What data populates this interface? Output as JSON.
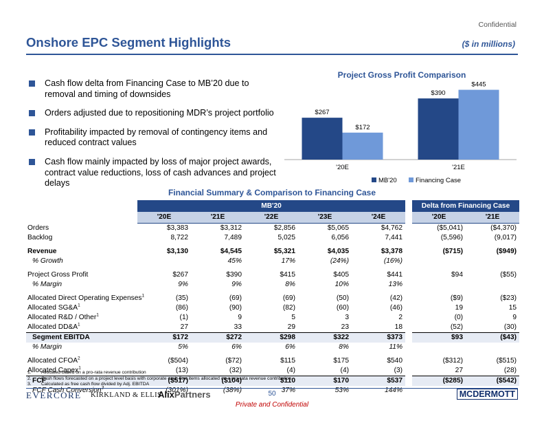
{
  "header": {
    "confidential": "Confidential",
    "title": "Onshore EPC Segment Highlights",
    "units": "($ in millions)"
  },
  "bullets": [
    "Cash flow delta from Financing Case to MB’20 due to removal and timing of downsides",
    "Orders adjusted due to repositioning MDR’s project portfolio",
    "Profitability impacted by removal of contingency items and reduced contract values",
    "Cash flow mainly impacted by loss of major project awards, contract value reductions, loss of cash advances and project delays"
  ],
  "chart_data": {
    "type": "bar",
    "title": "Project Gross Profit Comparison",
    "categories": [
      "'20E",
      "'21E"
    ],
    "series": [
      {
        "name": "MB'20",
        "values": [
          267,
          390
        ],
        "labels": [
          "$267",
          "$390"
        ],
        "color": "#244887"
      },
      {
        "name": "Financing Case",
        "values": [
          172,
          445
        ],
        "labels": [
          "$172",
          "$445"
        ],
        "color": "#6f99d9"
      }
    ],
    "ylim": [
      0,
      500
    ],
    "legend": "bottom",
    "xlabel": "",
    "ylabel": ""
  },
  "table": {
    "title": "Financial Summary & Comparison to Financing Case",
    "group_mb": "MB'20",
    "group_delta": "Delta from Financing Case",
    "years_mb": [
      "'20E",
      "'21E",
      "'22E",
      "'23E",
      "'24E"
    ],
    "years_delta": [
      "'20E",
      "'21E"
    ],
    "rows": [
      {
        "label": "Orders",
        "sup": "",
        "mb": [
          "$3,383",
          "$3,312",
          "$2,856",
          "$5,065",
          "$4,762"
        ],
        "delta": [
          "($5,041)",
          "($4,370)"
        ],
        "style": ""
      },
      {
        "label": "Backlog",
        "sup": "",
        "mb": [
          "8,722",
          "7,489",
          "5,025",
          "6,056",
          "7,441"
        ],
        "delta": [
          "(5,596)",
          "(9,017)"
        ],
        "style": ""
      },
      {
        "label": "Revenue",
        "sup": "",
        "mb": [
          "$3,130",
          "$4,545",
          "$5,321",
          "$4,035",
          "$3,378"
        ],
        "delta": [
          "($715)",
          "($949)"
        ],
        "style": "bold gap-before"
      },
      {
        "label": "% Growth",
        "sup": "",
        "mb": [
          "",
          "45%",
          "17%",
          "(24%)",
          "(16%)"
        ],
        "delta": [
          "",
          ""
        ],
        "style": "italic indent"
      },
      {
        "label": "Project Gross Profit",
        "sup": "",
        "mb": [
          "$267",
          "$390",
          "$415",
          "$405",
          "$441"
        ],
        "delta": [
          "$94",
          "($55)"
        ],
        "style": "gap-before"
      },
      {
        "label": "% Margin",
        "sup": "",
        "mb": [
          "9%",
          "9%",
          "8%",
          "10%",
          "13%"
        ],
        "delta": [
          "",
          ""
        ],
        "style": "italic indent"
      },
      {
        "label": "Allocated Direct Operating Expenses",
        "sup": "1",
        "mb": [
          "(35)",
          "(69)",
          "(69)",
          "(50)",
          "(42)"
        ],
        "delta": [
          "($9)",
          "($23)"
        ],
        "style": "gap-before"
      },
      {
        "label": "Allocated SG&A",
        "sup": "1",
        "mb": [
          "(86)",
          "(90)",
          "(82)",
          "(60)",
          "(46)"
        ],
        "delta": [
          "19",
          "15"
        ],
        "style": ""
      },
      {
        "label": "Allocated R&D / Other",
        "sup": "1",
        "mb": [
          "(1)",
          "9",
          "5",
          "3",
          "2"
        ],
        "delta": [
          "(0)",
          "9"
        ],
        "style": ""
      },
      {
        "label": "Allocated DD&A",
        "sup": "1",
        "mb": [
          "27",
          "33",
          "29",
          "23",
          "18"
        ],
        "delta": [
          "(52)",
          "(30)"
        ],
        "style": "bottom-rule"
      },
      {
        "label": "Segment EBITDA",
        "sup": "",
        "mb": [
          "$172",
          "$272",
          "$298",
          "$322",
          "$373"
        ],
        "delta": [
          "$93",
          "($43)"
        ],
        "style": "bold section indent"
      },
      {
        "label": "% Margin",
        "sup": "",
        "mb": [
          "5%",
          "6%",
          "6%",
          "8%",
          "11%"
        ],
        "delta": [
          "",
          ""
        ],
        "style": "italic indent"
      },
      {
        "label": "Allocated CFOA",
        "sup": "2",
        "mb": [
          "($504)",
          "($72)",
          "$115",
          "$175",
          "$540"
        ],
        "delta": [
          "($312)",
          "($515)"
        ],
        "style": "gap-before"
      },
      {
        "label": "Allocated Capex",
        "sup": "1",
        "mb": [
          "(13)",
          "(32)",
          "(4)",
          "(4)",
          "(3)"
        ],
        "delta": [
          "27",
          "(28)"
        ],
        "style": "bottom-rule"
      },
      {
        "label": "FCF",
        "sup": "",
        "mb": [
          "($517)",
          "($104)",
          "$110",
          "$170",
          "$537"
        ],
        "delta": [
          "($285)",
          "($542)"
        ],
        "style": "bold section indent"
      },
      {
        "label": "FCF Cash Conversion",
        "sup": "3",
        "mb": [
          "(301%)",
          "(38%)",
          "37%",
          "53%",
          "144%"
        ],
        "delta": [
          "",
          ""
        ],
        "style": "italic indent"
      }
    ]
  },
  "footnotes": [
    {
      "num": "1.",
      "text": "Allocated based on a pro-rata revenue contribution"
    },
    {
      "num": "2.",
      "text": "Cash flows forecasted on a project level basis with corporate cash flow items allocated on a pro-rata revenue contribution"
    },
    {
      "num": "3.",
      "text": "Calculated as free cash flow divided by Adj. EBITDA"
    }
  ],
  "footer": {
    "evercore": "EVERCORE",
    "kirkland": "KIRKLAND & ELLIS",
    "alix_main": "Alix",
    "alix_accent": "Partners",
    "page_number": "50",
    "mcdermott": "MCDERMOTT",
    "private": "Private and Confidential"
  }
}
